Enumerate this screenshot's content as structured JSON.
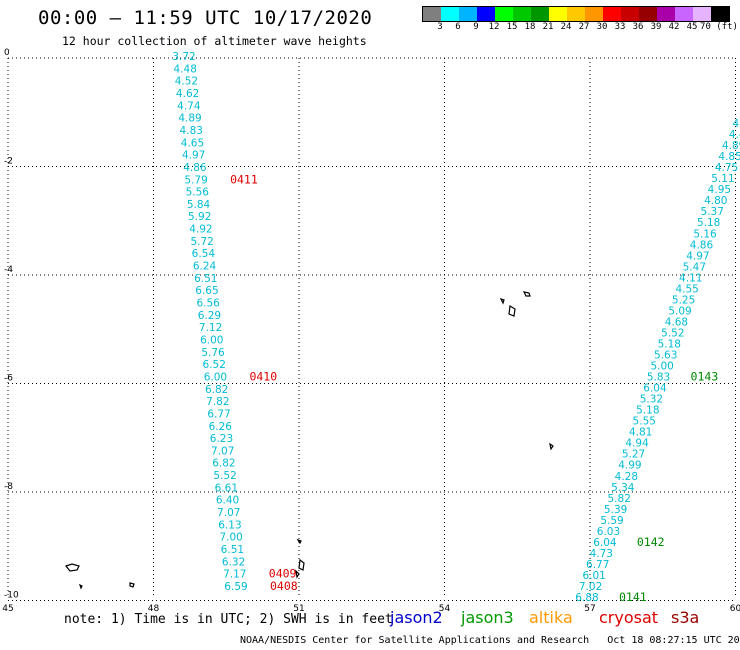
{
  "header": {
    "title": "00:00 – 11:59 UTC 10/17/2020",
    "subtitle": "12 hour collection of altimeter wave heights"
  },
  "colorbar": {
    "colors": [
      "#7f7f7f",
      "#00ffff",
      "#00b4ff",
      "#0000ff",
      "#00ff00",
      "#00c800",
      "#009600",
      "#ffff00",
      "#ffc800",
      "#ff9600",
      "#ff0000",
      "#c80000",
      "#960000",
      "#aa00aa",
      "#c864ff",
      "#e6b4ff",
      "#000000"
    ],
    "labels": [
      "3",
      "6",
      "9",
      "12",
      "15",
      "18",
      "21",
      "24",
      "27",
      "30",
      "33",
      "36",
      "39",
      "42",
      "45",
      "70 (ft)"
    ]
  },
  "map": {
    "x_ticks": [
      "45",
      "48",
      "51",
      "54",
      "57",
      "60"
    ],
    "y_ticks": [
      "0",
      "-2",
      "-4",
      "-6",
      "-8",
      "-10"
    ],
    "left_track": {
      "color": "#00bcd4",
      "values": [
        "3.72",
        "4.48",
        "4.52",
        "4.62",
        "4.74",
        "4.89",
        "4.83",
        "4.65",
        "4.97",
        "4.86",
        "5.79",
        "5.56",
        "5.84",
        "5.92",
        "4.92",
        "5.72",
        "6.54",
        "6.24",
        "6.51",
        "6.65",
        "6.56",
        "6.29",
        "7.12",
        "6.00",
        "5.76",
        "6.52",
        "6.00",
        "6.82",
        "7.82",
        "6.77",
        "6.26",
        "6.23",
        "7.07",
        "6.82",
        "5.52",
        "6.61",
        "6.40",
        "7.07",
        "6.13",
        "7.00",
        "6.51",
        "6.32",
        "7.17",
        "6.59"
      ],
      "time_labels": [
        {
          "text": "0411",
          "index": 10
        },
        {
          "text": "0410",
          "index": 26
        },
        {
          "text": "0409",
          "index": 42
        },
        {
          "text": "0408",
          "index": 43
        }
      ]
    },
    "right_track": {
      "color": "#00bcd4",
      "values": [
        "4",
        "4",
        "4.6",
        "4.4",
        "4.89",
        "4.85",
        "4.75",
        "5.11",
        "4.95",
        "4.80",
        "5.37",
        "5.18",
        "5.16",
        "4.86",
        "4.97",
        "5.47",
        "4.11",
        "4.55",
        "5.25",
        "5.09",
        "4.68",
        "5.52",
        "5.18",
        "5.63",
        "5.00",
        "5.83",
        "6.04",
        "5.32",
        "5.18",
        "5.55",
        "4.81",
        "4.94",
        "5.27",
        "4.99",
        "4.28",
        "5.34",
        "5.82",
        "5.39",
        "5.59",
        "6.03",
        "6.04",
        "4.73",
        "6.77",
        "6.01",
        "7.02",
        "6.88"
      ],
      "time_labels": [
        {
          "text": "0",
          "index": 10
        },
        {
          "text": "0143",
          "index": 25
        },
        {
          "text": "0142",
          "index": 40
        },
        {
          "text": "0141",
          "index": 45
        }
      ]
    }
  },
  "footer": {
    "note": "note: 1) Time is in UTC; 2) SWH is in feet",
    "legend": [
      {
        "name": "jason2",
        "color": "#0000cc"
      },
      {
        "name": "jason3",
        "color": "#009900"
      },
      {
        "name": "altika",
        "color": "#ff9900"
      },
      {
        "name": "cryosat",
        "color": "#dd0000"
      },
      {
        "name": "s3a",
        "color": "#990000"
      }
    ],
    "credit": "NOAA/NESDIS Center for Satellite Applications and Research   Oct 18 08:27:15 UTC 2020"
  }
}
